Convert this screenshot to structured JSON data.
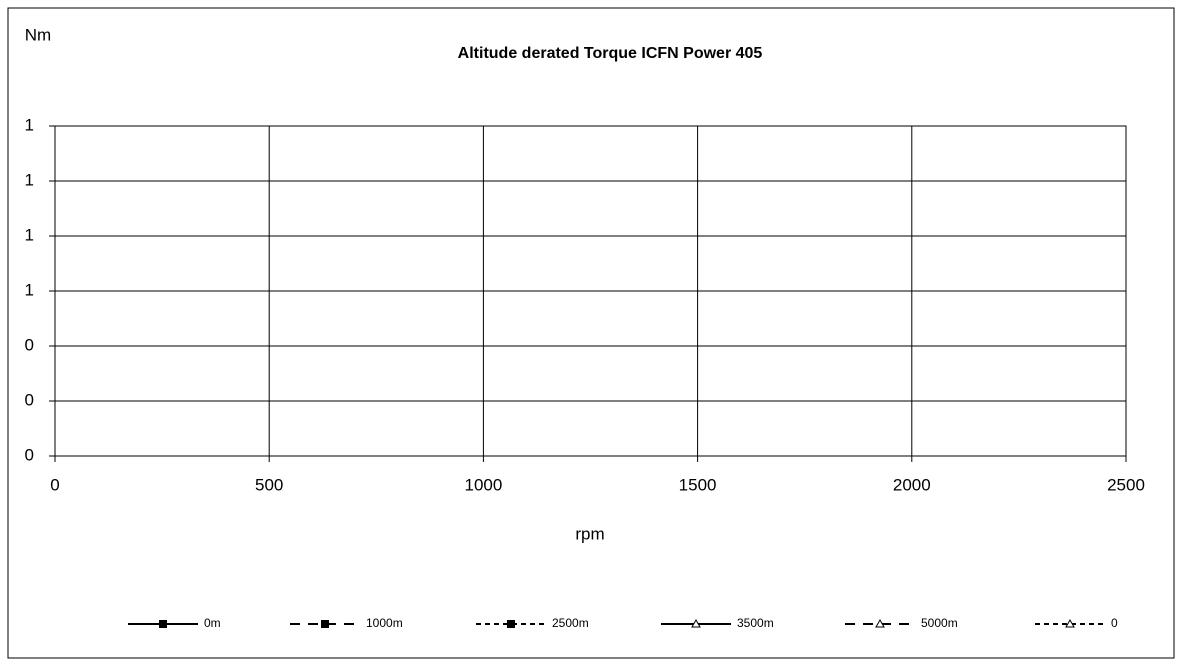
{
  "chart_data": {
    "type": "line",
    "title": "Altitude derated Torque  ICFN Power 405",
    "y_label": "Nm",
    "x_label": "rpm",
    "xlim": [
      0,
      2500
    ],
    "xticks": [
      0,
      500,
      1000,
      1500,
      2000,
      2500
    ],
    "ylim": [
      0,
      1.2
    ],
    "yticks": [
      0,
      {
        "value": 0.2,
        "label": "0"
      },
      {
        "value": 0.4,
        "label": "0"
      },
      {
        "value": 0.6,
        "label": "1"
      },
      {
        "value": 0.8,
        "label": "1"
      },
      1,
      {
        "value": 1.2,
        "label": "1"
      }
    ],
    "grid": true,
    "legend": "bottom",
    "x": [],
    "series": [
      {
        "name": "0m",
        "color": "#000000",
        "dash": "solid",
        "marker": "square",
        "values": []
      },
      {
        "name": "1000m",
        "color": "#000000",
        "dash": "dashed",
        "marker": "square",
        "values": []
      },
      {
        "name": "2500m",
        "color": "#000000",
        "dash": "dotted",
        "marker": "square",
        "values": []
      },
      {
        "name": "3500m",
        "color": "#000000",
        "dash": "solid",
        "marker": "triangle",
        "values": []
      },
      {
        "name": "5000m",
        "color": "#000000",
        "dash": "dashed",
        "marker": "triangle",
        "values": []
      },
      {
        "name": "0",
        "color": "#000000",
        "dash": "dotted",
        "marker": "triangle",
        "values": []
      }
    ]
  }
}
